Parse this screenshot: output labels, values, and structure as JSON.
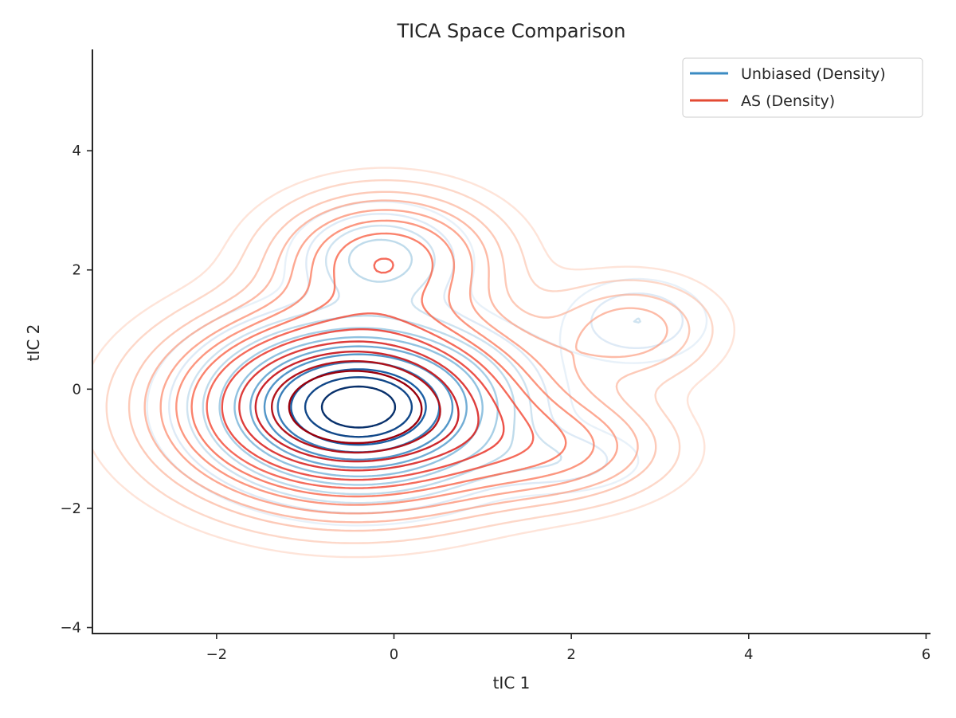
{
  "chart_data": {
    "type": "contour",
    "title": "TICA Space Comparison",
    "xlabel": "tIC 1",
    "ylabel": "tIC 2",
    "xlim": [
      -3.4,
      6.05
    ],
    "ylim": [
      -4.1,
      5.7
    ],
    "xticks": [
      -2,
      0,
      2,
      4,
      6
    ],
    "yticks": [
      -4,
      -2,
      0,
      2,
      4
    ],
    "xtick_labels": [
      "−2",
      "0",
      "2",
      "4",
      "6"
    ],
    "ytick_labels": [
      "−4",
      "−2",
      "0",
      "2",
      "4"
    ],
    "grid": false,
    "legend_position": "top-right",
    "series": [
      {
        "name": "Unbiased (Density)",
        "color": "#3b8bc2",
        "colormap": [
          "#e3eef9",
          "#c6dbef",
          "#9ecae1",
          "#6baed6",
          "#3182bd",
          "#08519c",
          "#08306b"
        ],
        "modes": [
          {
            "cx": -0.4,
            "cy": -0.3,
            "sx": 0.9,
            "sy": 0.75,
            "w": 1.0
          },
          {
            "cx": -0.15,
            "cy": 2.2,
            "sx": 0.55,
            "sy": 0.5,
            "w": 0.18
          },
          {
            "cx": 2.75,
            "cy": 1.15,
            "sx": 0.5,
            "sy": 0.45,
            "w": 0.1
          },
          {
            "cx": 1.9,
            "cy": -1.2,
            "sx": 0.6,
            "sy": 0.35,
            "w": 0.08
          }
        ],
        "levels": [
          0.03,
          0.06,
          0.1,
          0.15,
          0.22,
          0.3,
          0.4,
          0.5,
          0.6,
          0.7,
          0.8,
          0.9
        ]
      },
      {
        "name": "AS (Density)",
        "color": "#e34a33",
        "colormap": [
          "#fee0d2",
          "#fcbba1",
          "#fc9272",
          "#fb6a4a",
          "#ef3b2c",
          "#cb181d",
          "#99000d"
        ],
        "modes": [
          {
            "cx": -0.45,
            "cy": -0.3,
            "sx": 1.1,
            "sy": 0.9,
            "w": 1.0
          },
          {
            "cx": -0.1,
            "cy": 2.2,
            "sx": 0.75,
            "sy": 0.65,
            "w": 0.3
          },
          {
            "cx": 2.7,
            "cy": 1.0,
            "sx": 0.6,
            "sy": 0.55,
            "w": 0.12
          },
          {
            "cx": 1.8,
            "cy": -1.0,
            "sx": 0.8,
            "sy": 0.55,
            "w": 0.18
          }
        ],
        "levels": [
          0.02,
          0.04,
          0.07,
          0.1,
          0.14,
          0.19,
          0.25,
          0.32,
          0.4,
          0.5,
          0.6,
          0.7,
          0.8
        ]
      }
    ]
  }
}
